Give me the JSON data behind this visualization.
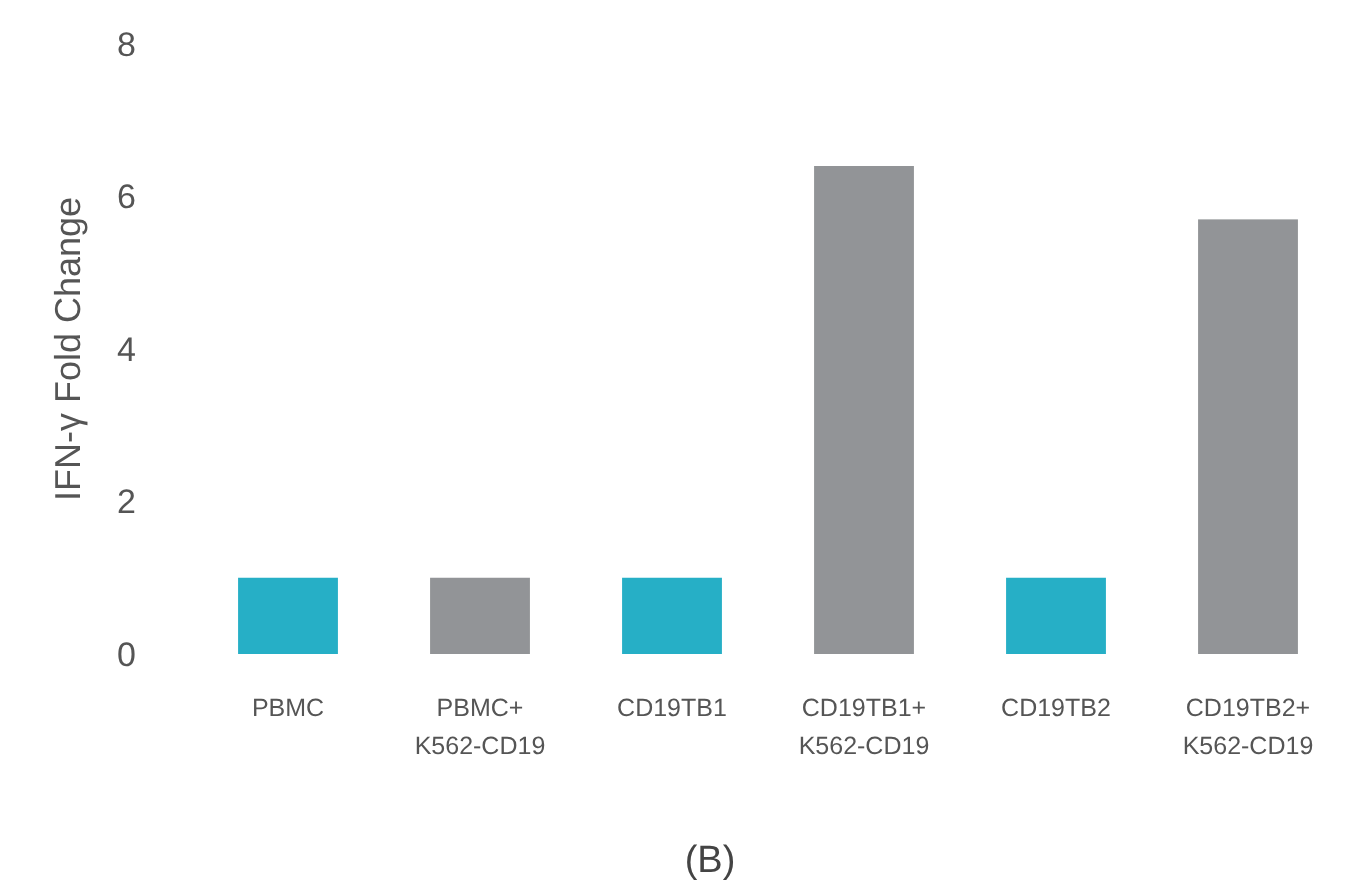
{
  "chart_data": {
    "type": "bar",
    "ylabel": "IFN-γ  Fold Change",
    "categories": [
      "PBMC",
      "PBMC+\nK562-CD19",
      "CD19TB1",
      "CD19TB1+\nK562-CD19",
      "CD19TB2",
      "CD19TB2+\nK562-CD19"
    ],
    "values": [
      1,
      1,
      1,
      6.4,
      1,
      5.7
    ],
    "colors": [
      "#26afc6",
      "#929497",
      "#26afc6",
      "#929497",
      "#26afc6",
      "#929497"
    ],
    "ylim": [
      0,
      8
    ],
    "yticks": [
      0,
      2,
      4,
      6,
      8
    ],
    "grid": false,
    "annotations": [
      "(B)"
    ]
  }
}
